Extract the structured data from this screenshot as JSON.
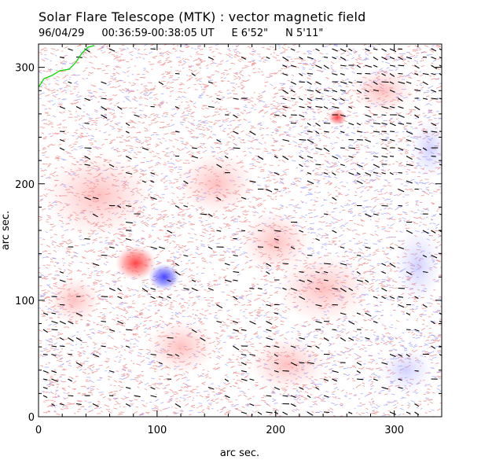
{
  "figure": {
    "title": "Solar Flare Telescope (MTK) : vector magnetic field",
    "subtitle": {
      "date": "96/04/29",
      "time_range": "00:36:59-00:38:05 UT",
      "east": "E 6'52\"",
      "north": "N 5'11\""
    }
  },
  "axes": {
    "xlabel": "arc sec.",
    "ylabel": "arc sec.",
    "xlim": [
      0,
      340
    ],
    "ylim": [
      0,
      320
    ],
    "xticks": [
      0,
      100,
      200,
      300
    ],
    "yticks": [
      0,
      100,
      200,
      300
    ],
    "xtick_labels": [
      "0",
      "100",
      "200",
      "300"
    ],
    "ytick_labels": [
      "0",
      "100",
      "200",
      "300"
    ]
  },
  "colors": {
    "positive_polarity": "#f08080",
    "negative_polarity": "#7a7aff",
    "vector_arrows": "#000000",
    "limb_contour": "#00dd00"
  },
  "chart_data": {
    "type": "heatmap",
    "description_fields": {
      "quantity": "vector magnetic field"
    },
    "features": [
      {
        "polarity": "positive",
        "x": 82,
        "y": 132
      },
      {
        "polarity": "negative",
        "x": 106,
        "y": 120
      },
      {
        "polarity": "positive",
        "x": 252,
        "y": 257
      }
    ]
  }
}
